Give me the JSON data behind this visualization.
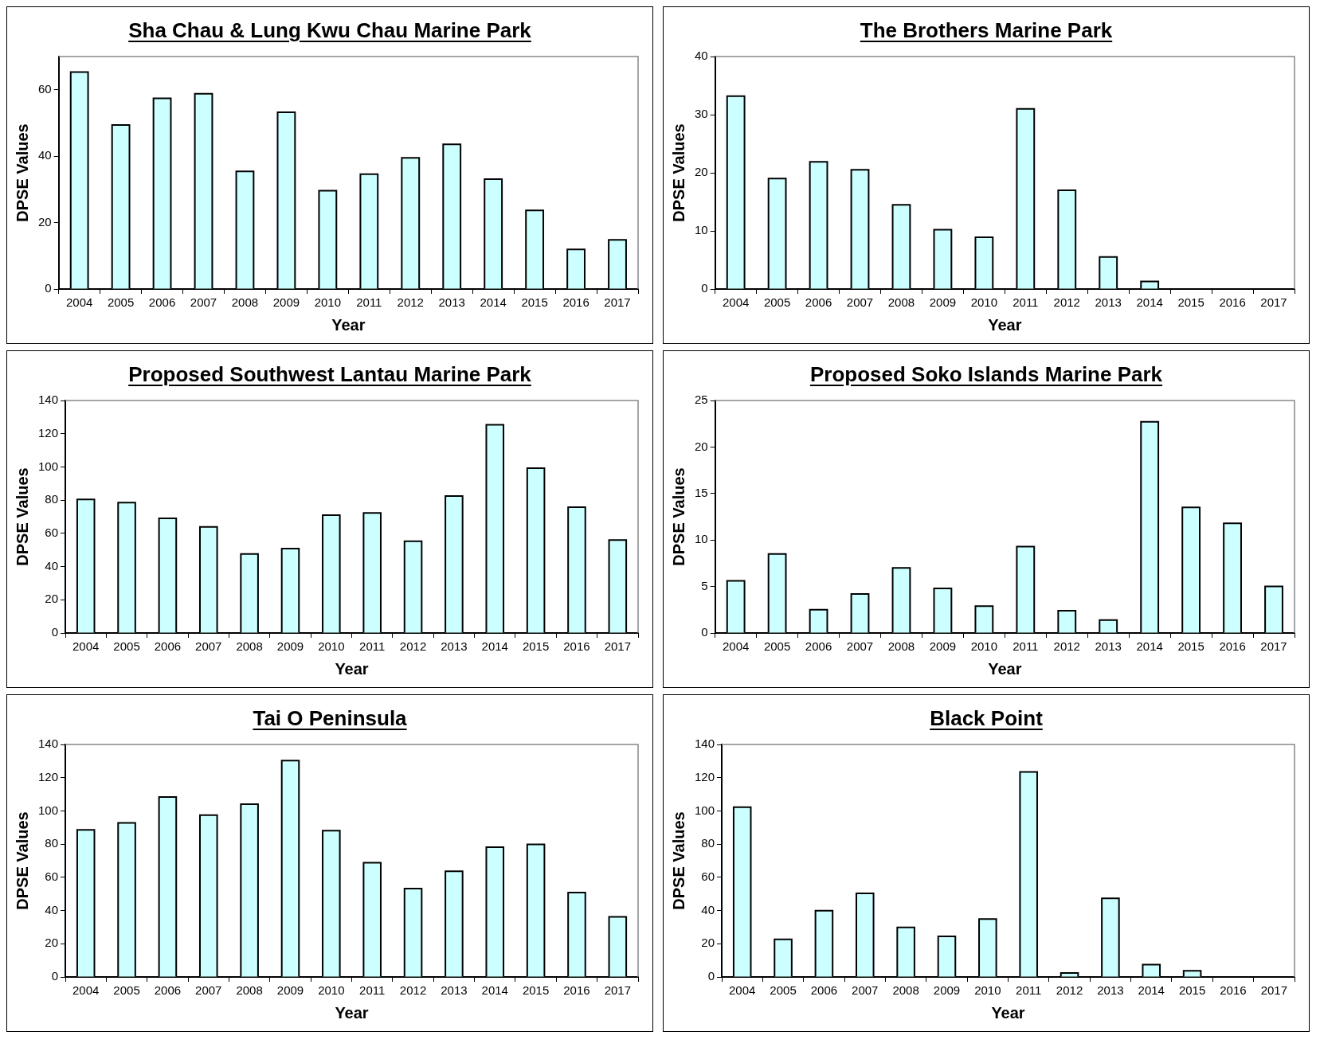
{
  "chart_data": [
    {
      "type": "bar",
      "title": "Sha Chau & Lung Kwu Chau Marine Park",
      "xlabel": "Year",
      "ylabel": "DPSE Values",
      "categories": [
        "2004",
        "2005",
        "2006",
        "2007",
        "2008",
        "2009",
        "2010",
        "2011",
        "2012",
        "2013",
        "2014",
        "2015",
        "2016",
        "2017"
      ],
      "values": [
        65.3,
        49.4,
        57.4,
        58.8,
        35.4,
        53.2,
        29.6,
        34.6,
        39.5,
        43.6,
        33.1,
        23.7,
        11.9,
        14.8
      ],
      "color": "#ccffff",
      "ylim": [
        0,
        70
      ],
      "yticks": [
        0,
        20,
        40,
        60
      ]
    },
    {
      "type": "bar",
      "title": "The Brothers Marine Park",
      "xlabel": "Year",
      "ylabel": "DPSE Values",
      "categories": [
        "2004",
        "2005",
        "2006",
        "2007",
        "2008",
        "2009",
        "2010",
        "2011",
        "2012",
        "2013",
        "2014",
        "2015",
        "2016",
        "2017"
      ],
      "values": [
        33.2,
        19.0,
        21.9,
        20.5,
        14.5,
        10.2,
        8.9,
        31.0,
        17.0,
        5.5,
        1.3,
        0,
        0,
        0
      ],
      "color": "#ccffff",
      "ylim": [
        0,
        40
      ],
      "yticks": [
        0,
        10,
        20,
        30,
        40
      ]
    },
    {
      "type": "bar",
      "title": "Proposed Southwest Lantau Marine Park",
      "xlabel": "Year",
      "ylabel": "DPSE Values",
      "categories": [
        "2004",
        "2005",
        "2006",
        "2007",
        "2008",
        "2009",
        "2010",
        "2011",
        "2012",
        "2013",
        "2014",
        "2015",
        "2016",
        "2017"
      ],
      "values": [
        80.4,
        78.5,
        69.1,
        63.9,
        47.6,
        50.8,
        70.9,
        72.3,
        55.2,
        82.5,
        125.4,
        99.2,
        75.7,
        56.0
      ],
      "color": "#ccffff",
      "ylim": [
        0,
        140
      ],
      "yticks": [
        0,
        20,
        40,
        60,
        80,
        100,
        120,
        140
      ]
    },
    {
      "type": "bar",
      "title": "Proposed Soko Islands Marine Park",
      "xlabel": "Year",
      "ylabel": "DPSE Values",
      "categories": [
        "2004",
        "2005",
        "2006",
        "2007",
        "2008",
        "2009",
        "2010",
        "2011",
        "2012",
        "2013",
        "2014",
        "2015",
        "2016",
        "2017"
      ],
      "values": [
        5.6,
        8.5,
        2.5,
        4.2,
        7.0,
        4.8,
        2.9,
        9.3,
        2.4,
        1.4,
        22.7,
        13.5,
        11.8,
        5.0
      ],
      "color": "#ccffff",
      "ylim": [
        0,
        25
      ],
      "yticks": [
        0,
        5,
        10,
        15,
        20,
        25
      ]
    },
    {
      "type": "bar",
      "title": "Tai O Peninsula",
      "xlabel": "Year",
      "ylabel": "DPSE Values",
      "categories": [
        "2004",
        "2005",
        "2006",
        "2007",
        "2008",
        "2009",
        "2010",
        "2011",
        "2012",
        "2013",
        "2014",
        "2015",
        "2016",
        "2017"
      ],
      "values": [
        88.6,
        92.8,
        108.4,
        97.5,
        104.0,
        130.3,
        88.1,
        68.8,
        53.2,
        63.6,
        78.2,
        79.8,
        50.8,
        36.2
      ],
      "color": "#ccffff",
      "ylim": [
        0,
        140
      ],
      "yticks": [
        0,
        20,
        40,
        60,
        80,
        100,
        120,
        140
      ]
    },
    {
      "type": "bar",
      "title": "Black Point",
      "xlabel": "Year",
      "ylabel": "DPSE Values",
      "categories": [
        "2004",
        "2005",
        "2006",
        "2007",
        "2008",
        "2009",
        "2010",
        "2011",
        "2012",
        "2013",
        "2014",
        "2015",
        "2016",
        "2017"
      ],
      "values": [
        102.2,
        22.6,
        39.9,
        50.4,
        29.9,
        24.4,
        34.9,
        123.5,
        2.4,
        47.3,
        7.4,
        3.7,
        0,
        0
      ],
      "color": "#ccffff",
      "ylim": [
        0,
        140
      ],
      "yticks": [
        0,
        20,
        40,
        60,
        80,
        100,
        120,
        140
      ]
    }
  ]
}
